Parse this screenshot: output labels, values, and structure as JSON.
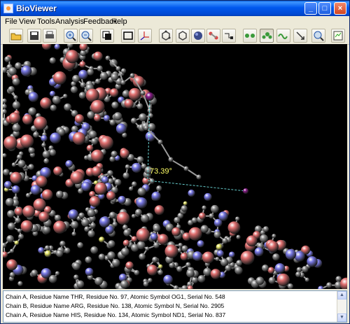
{
  "window": {
    "title": "BioViewer"
  },
  "menu": [
    "File",
    "View",
    "Tools",
    "Analysis",
    "Feedback",
    "Help"
  ],
  "toolbar": [
    {
      "name": "open-folder-icon"
    },
    {
      "name": "save-icon"
    },
    {
      "name": "print-icon"
    },
    {
      "name": "zoom-in-icon"
    },
    {
      "name": "zoom-out-icon"
    },
    {
      "name": "copy-icon"
    },
    {
      "name": "frame-icon"
    },
    {
      "name": "axes-icon"
    },
    {
      "name": "ring-icon"
    },
    {
      "name": "hexagon-icon"
    },
    {
      "name": "molecule-icon"
    },
    {
      "name": "bond-icon"
    },
    {
      "name": "chain-icon"
    },
    {
      "name": "atoms-icon"
    },
    {
      "name": "cluster-icon"
    },
    {
      "name": "wave-icon"
    },
    {
      "name": "pin-icon"
    },
    {
      "name": "search-icon"
    },
    {
      "name": "export-icon"
    }
  ],
  "viewer": {
    "angle_label": "73.39°"
  },
  "status": {
    "lines": [
      "Chain A,  Residue Name THR, Residue No. 97, Atomic Symbol OG1, Serial No. 548",
      "Chain B,  Residue Name ARG, Residue No. 138, Atomic Symbol N, Serial No. 2905",
      "Chain A,  Residue Name HIS, Residue No. 134, Atomic Symbol ND1, Serial No. 837"
    ]
  },
  "colors": {
    "carbon": "#8c8c8c",
    "oxygen": "#e07070",
    "nitrogen": "#7a7ae6",
    "sulfur": "#e6e66a",
    "selected": "#8a1a8a",
    "measure": "#66cccc"
  }
}
